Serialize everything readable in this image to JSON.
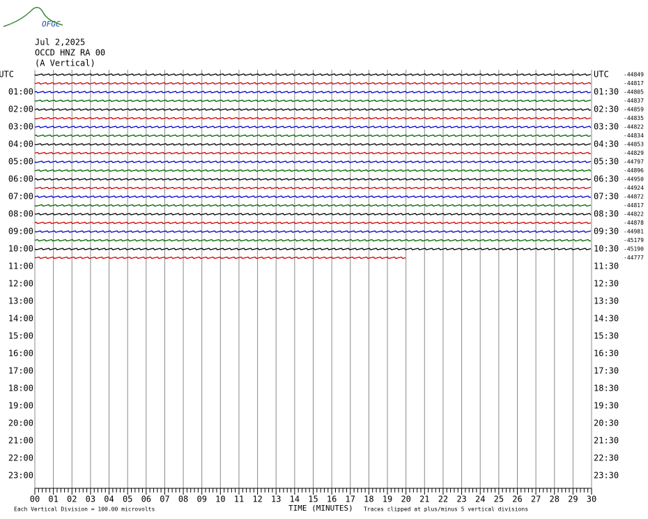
{
  "header": {
    "logo": "OFGC",
    "date": "Jul 2,2025",
    "station": "OCCD HNZ RA 00",
    "component": "(A Vertical)"
  },
  "left_labels": [
    "UTC",
    "01:00",
    "02:00",
    "03:00",
    "04:00",
    "05:00",
    "06:00",
    "07:00",
    "08:00",
    "09:00",
    "10:00",
    "11:00",
    "12:00",
    "13:00",
    "14:00",
    "15:00",
    "16:00",
    "17:00",
    "18:00",
    "19:00",
    "20:00",
    "21:00",
    "22:00",
    "23:00"
  ],
  "right_labels": [
    "UTC",
    "01:30",
    "02:30",
    "03:30",
    "04:30",
    "05:30",
    "06:30",
    "07:30",
    "08:30",
    "09:30",
    "10:30",
    "11:30",
    "12:30",
    "13:30",
    "14:30",
    "15:30",
    "16:30",
    "17:30",
    "18:30",
    "19:30",
    "20:30",
    "21:30",
    "22:30",
    "23:30"
  ],
  "offsets": [
    "-44849",
    "-44817",
    "-44805",
    "-44837",
    "-44859",
    "-44835",
    "-44822",
    "-44834",
    "-44853",
    "-44829",
    "-44797",
    "-44896",
    "-44950",
    "-44924",
    "-44872",
    "-44817",
    "-44822",
    "-44878",
    "-44981",
    "-45179",
    "-45190",
    "-44777"
  ],
  "trace_colors": [
    "#000000",
    "#d00000",
    "#0000c8",
    "#006400"
  ],
  "last_trace_end_minutes": 20,
  "x_tick_labels": [
    "00",
    "01",
    "02",
    "03",
    "04",
    "05",
    "06",
    "07",
    "08",
    "09",
    "10",
    "11",
    "12",
    "13",
    "14",
    "15",
    "16",
    "17",
    "18",
    "19",
    "20",
    "21",
    "22",
    "23",
    "24",
    "25",
    "26",
    "27",
    "28",
    "29",
    "30"
  ],
  "footer": {
    "scale": "Each Vertical Division =  100.00 microvolts",
    "x_axis_title": "TIME (MINUTES)",
    "clip_note": "Traces clipped at plus/minus 5 vertical divisions"
  }
}
